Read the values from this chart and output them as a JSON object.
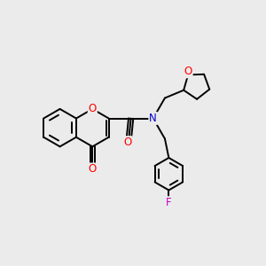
{
  "background_color": "#ebebeb",
  "bond_color": "#000000",
  "bond_width": 1.4,
  "atom_colors": {
    "O": "#ff0000",
    "N": "#0000cd",
    "F": "#cc00cc",
    "C": "#000000"
  },
  "font_size": 8.5
}
